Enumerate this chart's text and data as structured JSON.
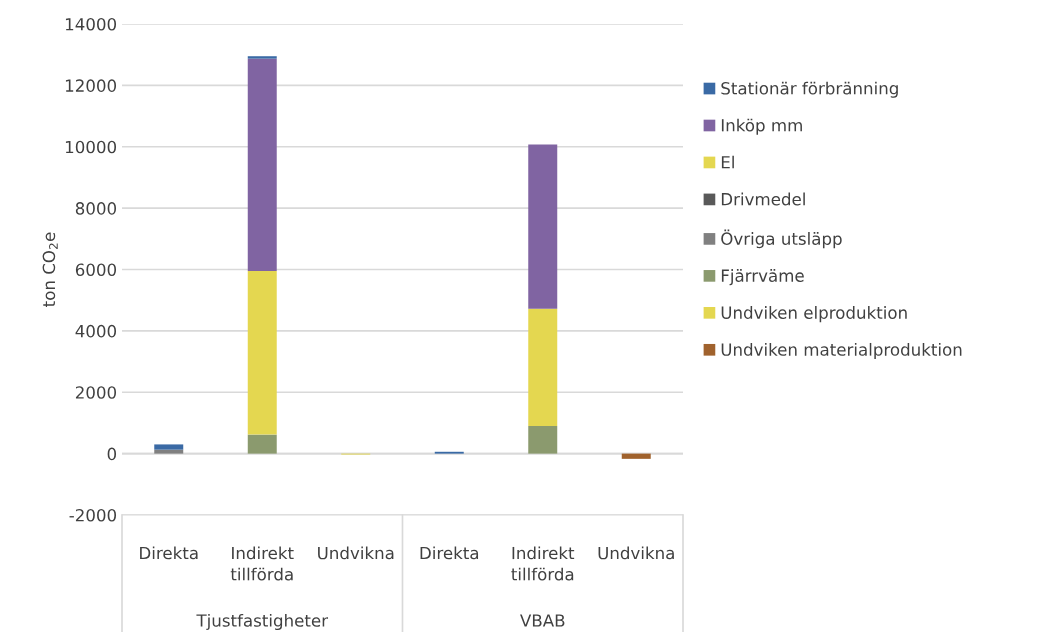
{
  "chart_data": {
    "type": "bar",
    "stacked": true,
    "ylabel": "ton CO$_{2}$e",
    "categories": [
      "Direkta",
      "Indirekt\ntillförda",
      "Undvikna",
      "Direkta",
      "Indirekt\ntillförda",
      "Undvikna"
    ],
    "annotations": [
      "Tjustfastigheter",
      "VBAB"
    ],
    "series": [
      {
        "name": "Undviken materialproduktion",
        "color": "#a0622d",
        "values": [
          0,
          0,
          0,
          0,
          0,
          -170
        ]
      },
      {
        "name": "Undviken elproduktion",
        "color": "#e4d750",
        "values": [
          0,
          0,
          -30,
          0,
          0,
          0
        ]
      },
      {
        "name": "Fjärrväme",
        "color": "#8b9a6e",
        "values": [
          0,
          620,
          0,
          0,
          900,
          0
        ]
      },
      {
        "name": "Övriga utsläpp",
        "color": "#808080",
        "values": [
          130,
          0,
          0,
          0,
          0,
          0
        ]
      },
      {
        "name": "Drivmedel",
        "color": "#595959",
        "values": [
          0,
          0,
          0,
          0,
          0,
          0
        ]
      },
      {
        "name": "El",
        "color": "#e4d750",
        "values": [
          0,
          5330,
          0,
          0,
          3820,
          0
        ]
      },
      {
        "name": "Inköp mm",
        "color": "#8064a2",
        "values": [
          0,
          6920,
          0,
          0,
          5350,
          0
        ]
      },
      {
        "name": "Stationär förbränning",
        "color": "#3a6aa5",
        "values": [
          170,
          80,
          0,
          60,
          0,
          0
        ]
      }
    ],
    "ylim": [
      -2000,
      14000
    ],
    "yticks": [
      -2000,
      0,
      2000,
      4000,
      6000,
      8000,
      10000,
      12000,
      14000
    ],
    "grid": "y",
    "legend": "right"
  }
}
